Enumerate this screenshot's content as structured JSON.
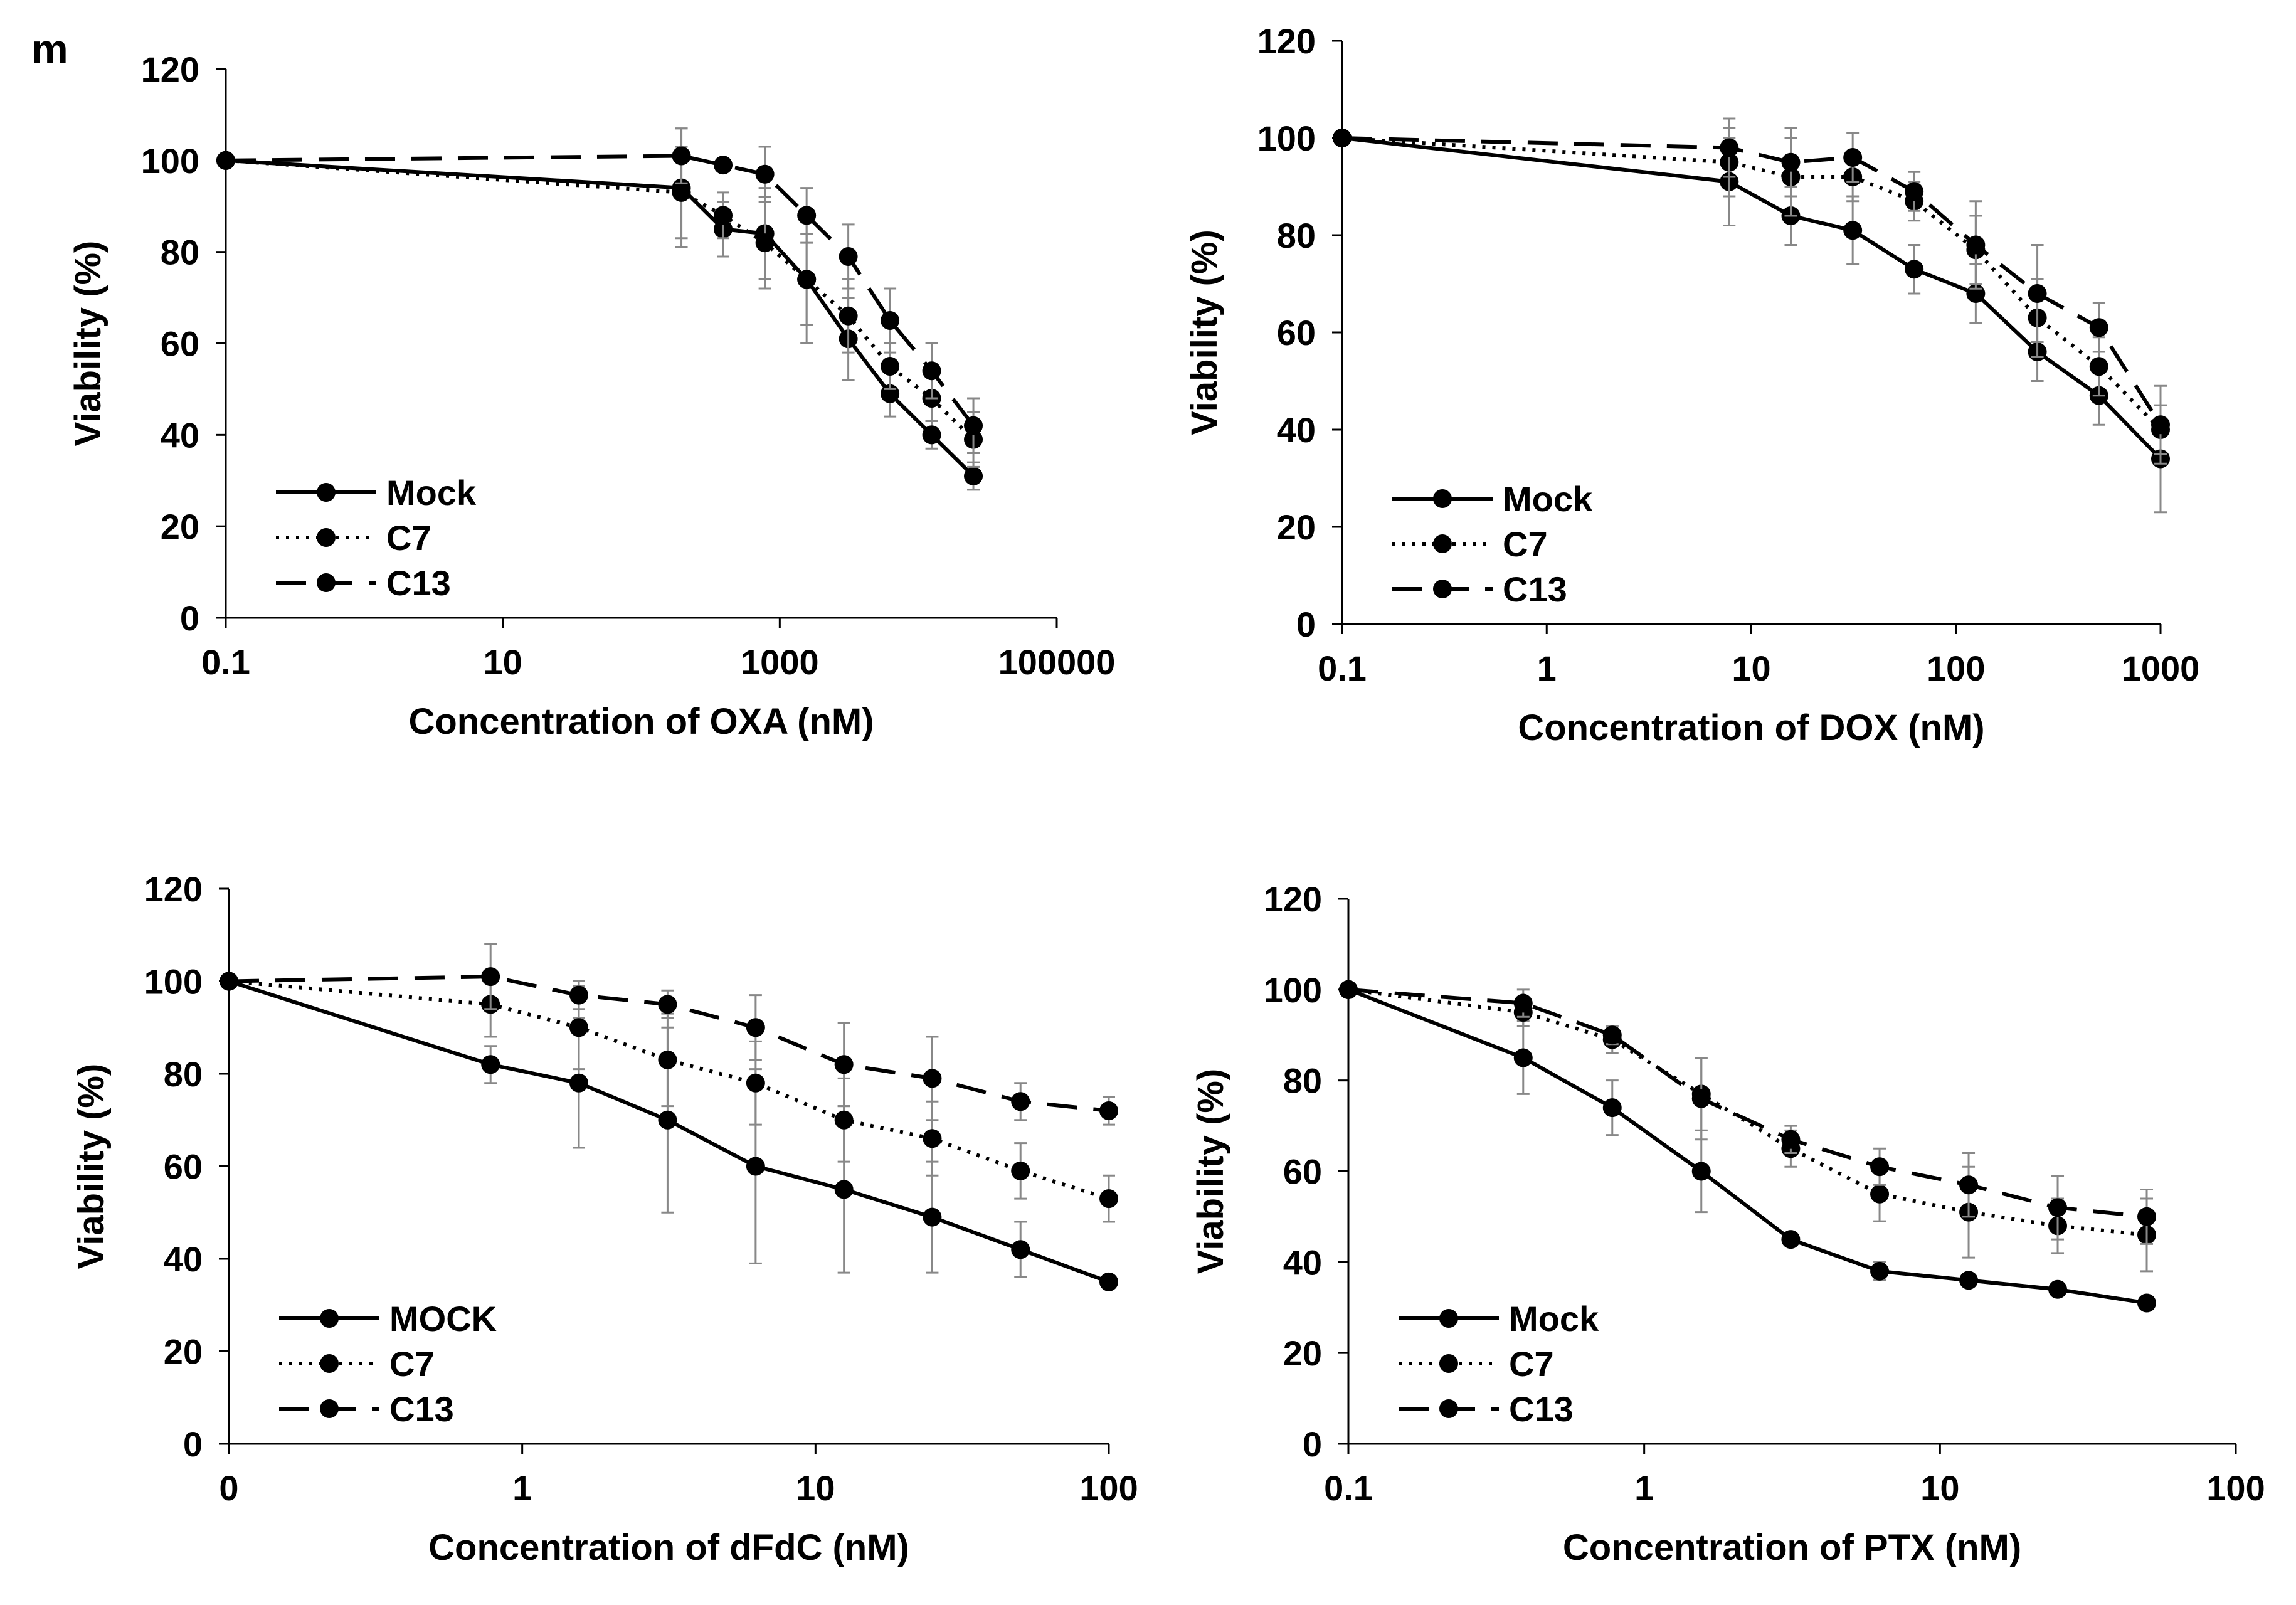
{
  "figure": {
    "panel_label": "m"
  },
  "chart_data": [
    {
      "type": "line",
      "title": "",
      "xlabel": "Concentration of OXA (nM)",
      "ylabel": "Viability (%)",
      "xscale": "log",
      "xlim": [
        0.1,
        100000
      ],
      "ylim": [
        0,
        120
      ],
      "xticks": [
        0.1,
        10,
        1000,
        100000
      ],
      "xtick_labels": [
        "0.1",
        "10",
        "1000",
        "100000"
      ],
      "yticks": [
        0,
        20,
        40,
        60,
        80,
        100,
        120
      ],
      "ytick_labels": [
        "0",
        "20",
        "40",
        "60",
        "80",
        "100",
        "120"
      ],
      "legend_position": "bottom-left",
      "x": [
        0.1,
        195,
        390,
        781,
        1563,
        3125,
        6250,
        12500,
        25000
      ],
      "series": [
        {
          "name": "Mock",
          "style": "solid",
          "values": [
            100,
            94,
            85,
            84,
            74,
            61,
            49,
            40,
            31
          ],
          "errors": [
            0,
            13,
            6,
            10,
            14,
            9,
            5,
            3,
            3
          ]
        },
        {
          "name": "C7",
          "style": "dotted",
          "values": [
            100,
            93,
            88,
            82,
            74,
            66,
            55,
            48,
            39
          ],
          "errors": [
            0,
            10,
            5,
            10,
            10,
            8,
            5,
            5,
            6
          ]
        },
        {
          "name": "C13",
          "style": "dashed",
          "values": [
            100,
            101,
            99,
            97,
            88,
            79,
            65,
            54,
            42
          ],
          "errors": [
            0,
            6,
            0,
            6,
            6,
            7,
            7,
            6,
            6
          ]
        }
      ]
    },
    {
      "type": "line",
      "title": "",
      "xlabel": "Concentration of DOX (nM)",
      "ylabel": "Viability (%)",
      "xscale": "log",
      "xlim": [
        0.1,
        1000
      ],
      "ylim": [
        0,
        120
      ],
      "xticks": [
        0.1,
        1,
        10,
        100,
        1000
      ],
      "xtick_labels": [
        "0.1",
        "1",
        "10",
        "100",
        "1000"
      ],
      "yticks": [
        0,
        20,
        40,
        60,
        80,
        100,
        120
      ],
      "ytick_labels": [
        "0",
        "20",
        "40",
        "60",
        "80",
        "100",
        "120"
      ],
      "legend_position": "bottom-left",
      "x": [
        0.1,
        7.8,
        15.6,
        31.3,
        62.5,
        125,
        250,
        500,
        1000
      ],
      "series": [
        {
          "name": "Mock",
          "style": "solid",
          "values": [
            100,
            91,
            84,
            81,
            73,
            68,
            56,
            47,
            34
          ],
          "errors": [
            0,
            9,
            6,
            7,
            5,
            6,
            6,
            6,
            11
          ]
        },
        {
          "name": "C7",
          "style": "dotted",
          "values": [
            100,
            95,
            92,
            92,
            87,
            77,
            63,
            53,
            40
          ],
          "errors": [
            0,
            7,
            8,
            5,
            4,
            7,
            8,
            6,
            5
          ]
        },
        {
          "name": "C13",
          "style": "dashed",
          "values": [
            100,
            98,
            95,
            96,
            89,
            78,
            68,
            61,
            41
          ],
          "errors": [
            0,
            6,
            7,
            5,
            4,
            9,
            10,
            5,
            8
          ]
        }
      ]
    },
    {
      "type": "line",
      "title": "",
      "xlabel": "Concentration of dFdC (nM)",
      "ylabel": "Viability (%)",
      "xscale": "log",
      "xlim": [
        0.1,
        100
      ],
      "ylim": [
        0,
        120
      ],
      "xticks": [
        0.1,
        1,
        10,
        100
      ],
      "xtick_labels": [
        "0",
        "1",
        "10",
        "100"
      ],
      "yticks": [
        0,
        20,
        40,
        60,
        80,
        100,
        120
      ],
      "ytick_labels": [
        "0",
        "20",
        "40",
        "60",
        "80",
        "100",
        "120"
      ],
      "legend_position": "bottom-left",
      "x": [
        0.1,
        0.78,
        1.56,
        3.13,
        6.25,
        12.5,
        25,
        50,
        100
      ],
      "series": [
        {
          "name": "MOCK",
          "style": "solid",
          "values": [
            100,
            82,
            78,
            70,
            60,
            55,
            49,
            42,
            35
          ],
          "errors": [
            0,
            4,
            14,
            20,
            21,
            18,
            12,
            6,
            0
          ]
        },
        {
          "name": "C7",
          "style": "dotted",
          "values": [
            100,
            95,
            90,
            83,
            78,
            70,
            66,
            59,
            53
          ],
          "errors": [
            0,
            7,
            9,
            10,
            9,
            9,
            8,
            6,
            5
          ]
        },
        {
          "name": "C13",
          "style": "dashed",
          "values": [
            100,
            101,
            97,
            95,
            90,
            82,
            79,
            74,
            72
          ],
          "errors": [
            0,
            7,
            3,
            3,
            7,
            9,
            9,
            4,
            3
          ]
        }
      ]
    },
    {
      "type": "line",
      "title": "",
      "xlabel": "Concentration of PTX (nM)",
      "ylabel": "Viability (%)",
      "xscale": "log",
      "xlim": [
        0.1,
        100
      ],
      "ylim": [
        0,
        120
      ],
      "xticks": [
        0.1,
        1,
        10,
        100
      ],
      "xtick_labels": [
        "0.1",
        "1",
        "10",
        "100"
      ],
      "yticks": [
        0,
        20,
        40,
        60,
        80,
        100,
        120
      ],
      "ytick_labels": [
        "0",
        "20",
        "40",
        "60",
        "80",
        "100",
        "120"
      ],
      "legend_position": "bottom-left",
      "x": [
        0.1,
        0.39,
        0.78,
        1.56,
        3.13,
        6.25,
        12.5,
        25,
        50
      ],
      "series": [
        {
          "name": "Mock",
          "style": "solid",
          "values": [
            100,
            85,
            74,
            60,
            45,
            38,
            36,
            34,
            31
          ],
          "errors": [
            0,
            8,
            6,
            9,
            0,
            2,
            0,
            0,
            0
          ]
        },
        {
          "name": "C7",
          "style": "dotted",
          "values": [
            100,
            95,
            89,
            77,
            65,
            55,
            51,
            48,
            46
          ],
          "errors": [
            0,
            3,
            3,
            8,
            4,
            6,
            10,
            6,
            8
          ]
        },
        {
          "name": "C13",
          "style": "dashed",
          "values": [
            100,
            97,
            90,
            76,
            67,
            61,
            57,
            52,
            50
          ],
          "errors": [
            0,
            3,
            2,
            9,
            3,
            4,
            7,
            7,
            6
          ]
        }
      ]
    }
  ]
}
